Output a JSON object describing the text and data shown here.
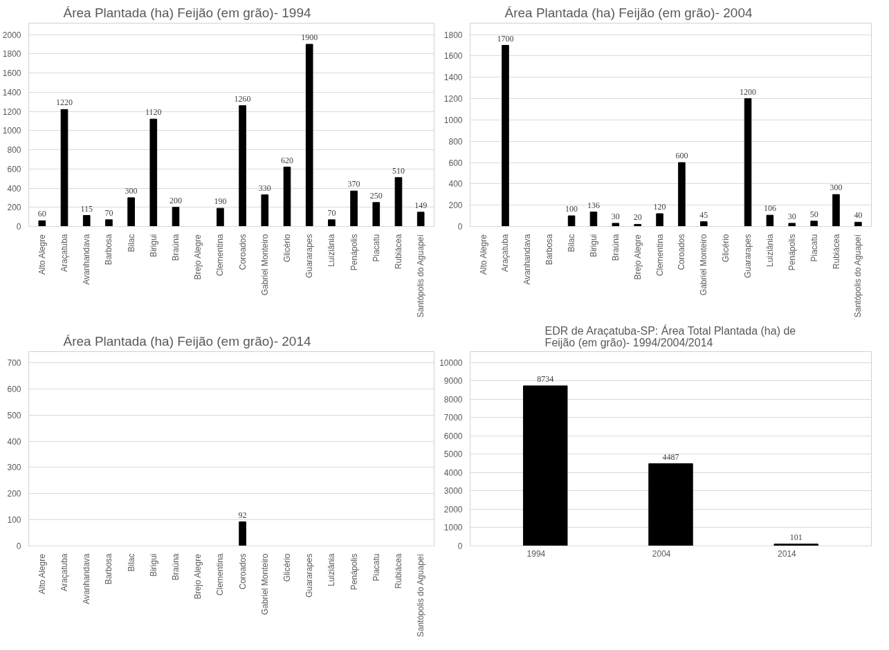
{
  "chart_data": [
    {
      "type": "bar",
      "title": "Área Plantada (ha) Feijão (em grão)- 1994",
      "categories": [
        "Alto Alegre",
        "Araçatuba",
        "Avanhandava",
        "Barbosa",
        "Bilac",
        "Birigui",
        "Braúna",
        "Brejo Alegre",
        "Clementina",
        "Coroados",
        "Gabriel Monteiro",
        "Glicério",
        "Guararapes",
        "Luiziânia",
        "Penápolis",
        "Piacatu",
        "Rubiácea",
        "Santópolis do Aguapeí"
      ],
      "values": [
        60,
        1220,
        115,
        70,
        300,
        1120,
        200,
        null,
        190,
        1260,
        330,
        620,
        1900,
        70,
        370,
        250,
        510,
        149
      ],
      "color": "#000000",
      "ylim": [
        0,
        2000
      ],
      "yticks": [
        0,
        200,
        400,
        600,
        800,
        1000,
        1200,
        1400,
        1600,
        1800,
        2000
      ],
      "grid": "y",
      "data_labels": true
    },
    {
      "type": "bar",
      "title": "Área Plantada (ha) Feijão (em grão)- 2004",
      "categories": [
        "Alto Alegre",
        "Araçatuba",
        "Avanhandava",
        "Barbosa",
        "Bilac",
        "Birigui",
        "Braúna",
        "Brejo Alegre",
        "Clementina",
        "Coroados",
        "Gabriel Monteiro",
        "Glicério",
        "Guararapes",
        "Luiziânia",
        "Penápolis",
        "Piacatu",
        "Rubiácea",
        "Santópolis do Aguapeí"
      ],
      "values": [
        null,
        1700,
        null,
        null,
        100,
        136,
        30,
        20,
        120,
        600,
        45,
        null,
        1200,
        106,
        30,
        50,
        300,
        40
      ],
      "color": "#000000",
      "ylim": [
        0,
        1800
      ],
      "yticks": [
        0,
        200,
        400,
        600,
        800,
        1000,
        1200,
        1400,
        1600,
        1800
      ],
      "grid": "y",
      "data_labels": true
    },
    {
      "type": "bar",
      "title": "Área Plantada (ha) Feijão (em grão)- 2014",
      "categories": [
        "Alto Alegre",
        "Araçatuba",
        "Avanhandava",
        "Barbosa",
        "Bilac",
        "Birigui",
        "Braúna",
        "Brejo Alegre",
        "Clementina",
        "Coroados",
        "Gabriel Monteiro",
        "Glicério",
        "Guararapes",
        "Luiziânia",
        "Penápolis",
        "Piacatu",
        "Rubiácea",
        "Santópolis do Aguapeí"
      ],
      "values": [
        null,
        null,
        null,
        null,
        null,
        null,
        null,
        null,
        null,
        92,
        null,
        null,
        null,
        null,
        null,
        null,
        null,
        null
      ],
      "color": "#000000",
      "ylim": [
        0,
        700
      ],
      "yticks": [
        0,
        100,
        200,
        300,
        400,
        500,
        600,
        700
      ],
      "grid": "y",
      "data_labels": true
    },
    {
      "type": "bar",
      "title": "EDR de Araçatuba-SP: Área Total Plantada (ha) de Feijão (em grão)- 1994/2004/2014",
      "categories": [
        "1994",
        "2004",
        "2014"
      ],
      "values": [
        8734,
        4487,
        101
      ],
      "color": "#000000",
      "ylim": [
        0,
        10000
      ],
      "yticks": [
        0,
        1000,
        2000,
        3000,
        4000,
        5000,
        6000,
        7000,
        8000,
        9000,
        10000
      ],
      "grid": "y",
      "data_labels": true
    }
  ]
}
